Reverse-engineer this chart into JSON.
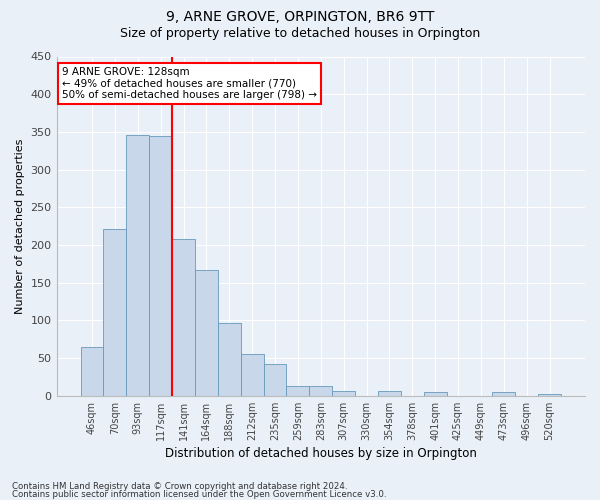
{
  "title": "9, ARNE GROVE, ORPINGTON, BR6 9TT",
  "subtitle": "Size of property relative to detached houses in Orpington",
  "xlabel": "Distribution of detached houses by size in Orpington",
  "ylabel": "Number of detached properties",
  "bar_color": "#c8d8ea",
  "bar_edge_color": "#6699bb",
  "categories": [
    "46sqm",
    "70sqm",
    "93sqm",
    "117sqm",
    "141sqm",
    "164sqm",
    "188sqm",
    "212sqm",
    "235sqm",
    "259sqm",
    "283sqm",
    "307sqm",
    "330sqm",
    "354sqm",
    "378sqm",
    "401sqm",
    "425sqm",
    "449sqm",
    "473sqm",
    "496sqm",
    "520sqm"
  ],
  "values": [
    65,
    221,
    346,
    344,
    208,
    167,
    97,
    56,
    42,
    13,
    13,
    7,
    0,
    7,
    0,
    5,
    0,
    0,
    5,
    0,
    3
  ],
  "vline_x": 3.5,
  "annotation_line1": "9 ARNE GROVE: 128sqm",
  "annotation_line2": "← 49% of detached houses are smaller (770)",
  "annotation_line3": "50% of semi-detached houses are larger (798) →",
  "annotation_box_color": "white",
  "annotation_box_edge": "red",
  "vline_color": "red",
  "ylim": [
    0,
    450
  ],
  "yticks": [
    0,
    50,
    100,
    150,
    200,
    250,
    300,
    350,
    400,
    450
  ],
  "footer1": "Contains HM Land Registry data © Crown copyright and database right 2024.",
  "footer2": "Contains public sector information licensed under the Open Government Licence v3.0.",
  "background_color": "#eaf0f8",
  "grid_color": "white",
  "title_fontsize": 10,
  "subtitle_fontsize": 9
}
